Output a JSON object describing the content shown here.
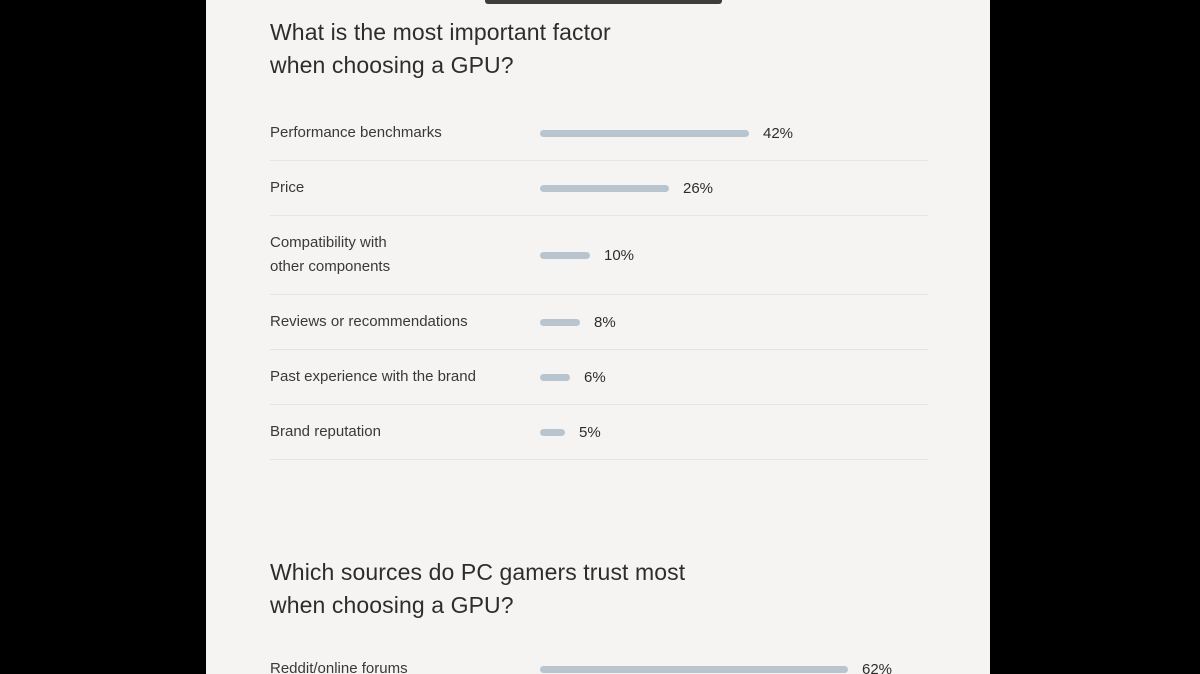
{
  "colors": {
    "page_background": "#000000",
    "panel_background": "#f5f4f2",
    "accent_bar": "#3d3d3d",
    "bar_fill": "#b8c5ce",
    "divider": "#e6e4e0",
    "heading_text": "#2d2d2c",
    "label_text": "#3a3938"
  },
  "charts": [
    {
      "title_lines": [
        "What is the most important factor",
        "when choosing a GPU?"
      ],
      "rows": [
        {
          "label_lines": [
            "Performance benchmarks"
          ],
          "pct": 42,
          "value_label": "42%"
        },
        {
          "label_lines": [
            "Price"
          ],
          "pct": 26,
          "value_label": "26%"
        },
        {
          "label_lines": [
            "Compatibility with",
            "other components"
          ],
          "pct": 10,
          "value_label": "10%"
        },
        {
          "label_lines": [
            "Reviews or recommendations"
          ],
          "pct": 8,
          "value_label": "8%"
        },
        {
          "label_lines": [
            "Past experience with the brand"
          ],
          "pct": 6,
          "value_label": "6%"
        },
        {
          "label_lines": [
            "Brand reputation"
          ],
          "pct": 5,
          "value_label": "5%"
        }
      ]
    },
    {
      "title_lines": [
        "Which sources do PC gamers trust most",
        "when choosing a GPU?"
      ],
      "rows": [
        {
          "label_lines": [
            "Reddit/online forums"
          ],
          "pct": 62,
          "value_label": "62%"
        }
      ]
    }
  ],
  "chart_data": [
    {
      "type": "bar",
      "orientation": "horizontal",
      "title": "What is the most important factor when choosing a GPU?",
      "categories": [
        "Performance benchmarks",
        "Price",
        "Compatibility with other components",
        "Reviews or recommendations",
        "Past experience with the brand",
        "Brand reputation"
      ],
      "values": [
        42,
        26,
        10,
        8,
        6,
        5
      ],
      "value_labels": [
        "42%",
        "26%",
        "10%",
        "8%",
        "6%",
        "5%"
      ],
      "unit": "%",
      "xlim": [
        0,
        100
      ],
      "grid": false,
      "legend": "none",
      "bar_color": "#b8c5ce"
    },
    {
      "type": "bar",
      "orientation": "horizontal",
      "title": "Which sources do PC gamers trust most when choosing a GPU?",
      "categories": [
        "Reddit/online forums"
      ],
      "values": [
        62
      ],
      "value_labels": [
        "62%"
      ],
      "unit": "%",
      "xlim": [
        0,
        100
      ],
      "grid": false,
      "legend": "none",
      "bar_color": "#b8c5ce"
    }
  ]
}
